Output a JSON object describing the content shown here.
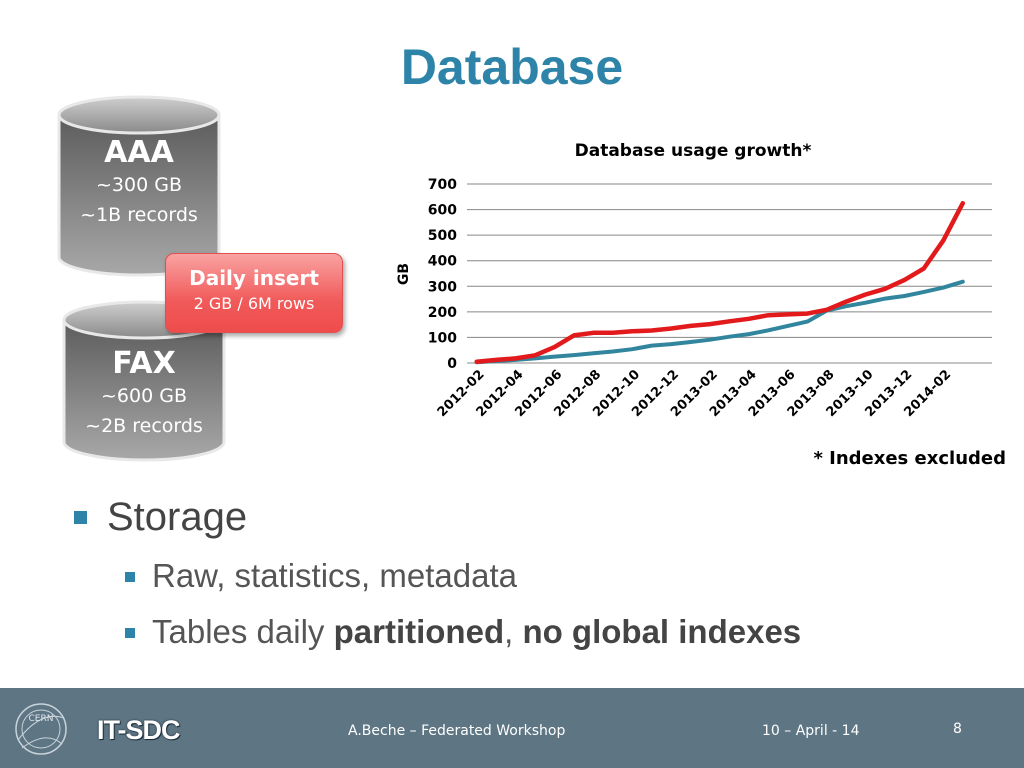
{
  "slide": {
    "title": "Database"
  },
  "cylinders": [
    {
      "name": "AAA",
      "size": "~300 GB",
      "records": "~1B records"
    },
    {
      "name": "FAX",
      "size": "~600 GB",
      "records": "~2B records"
    }
  ],
  "daily_insert": {
    "title": "Daily insert",
    "detail": "2 GB / 6M rows"
  },
  "chart_note": "* Indexes excluded",
  "chart_data": {
    "type": "line",
    "title": "Database usage growth*",
    "xlabel": "",
    "ylabel": "GB",
    "ylim": [
      0,
      700
    ],
    "yticks": [
      "0",
      "100",
      "200",
      "300",
      "400",
      "500",
      "600",
      "700"
    ],
    "x_tick_labels": [
      "2012-02",
      "2012-04",
      "2012-06",
      "2012-08",
      "2012-10",
      "2012-12",
      "2013-02",
      "2013-04",
      "2013-06",
      "2013-08",
      "2013-10",
      "2013-12",
      "2014-02"
    ],
    "x": [
      "2012-02",
      "2012-03",
      "2012-04",
      "2012-05",
      "2012-06",
      "2012-07",
      "2012-08",
      "2012-09",
      "2012-10",
      "2012-11",
      "2012-12",
      "2013-01",
      "2013-02",
      "2013-03",
      "2013-04",
      "2013-05",
      "2013-06",
      "2013-07",
      "2013-08",
      "2013-09",
      "2013-10",
      "2013-11",
      "2013-12",
      "2014-01",
      "2014-02",
      "2014-03",
      "2014-04"
    ],
    "grid": true,
    "series": [
      {
        "color": "#e31a1c",
        "values": [
          5,
          12,
          18,
          30,
          62,
          108,
          118,
          118,
          124,
          127,
          135,
          145,
          152,
          163,
          173,
          187,
          190,
          193,
          208,
          240,
          268,
          290,
          325,
          370,
          480,
          625,
          null
        ]
      },
      {
        "color": "#31859c",
        "values": [
          3,
          8,
          12,
          18,
          25,
          31,
          38,
          45,
          54,
          68,
          74,
          82,
          91,
          103,
          113,
          128,
          145,
          162,
          205,
          222,
          236,
          252,
          262,
          278,
          295,
          318,
          null
        ]
      }
    ]
  },
  "bullets": {
    "level1": "Storage",
    "level2_a": "Raw, statistics, metadata",
    "level2_b_prefix": "Tables daily ",
    "level2_b_bold1": "partitioned",
    "level2_b_sep": ", ",
    "level2_b_bold2": "no global indexes"
  },
  "footer": {
    "org": "IT-SDC",
    "logo_text": "CERN",
    "author": "A.Beche – Federated Workshop",
    "date": "10 – April - 14",
    "page": "8"
  }
}
